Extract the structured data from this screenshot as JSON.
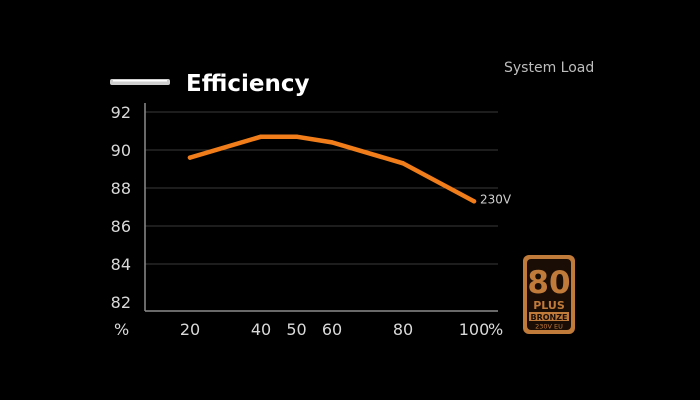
{
  "chart_data": {
    "type": "line",
    "title": "Efficiency",
    "legend_label": "System Load",
    "y_unit": "%",
    "x_unit": "%",
    "x_categories": [
      "20",
      "40",
      "50",
      "60",
      "80",
      "100"
    ],
    "y_ticks": [
      "92",
      "90",
      "88",
      "86",
      "84",
      "82"
    ],
    "ylim": [
      82,
      92
    ],
    "grid": true,
    "series": [
      {
        "name": "230V",
        "color": "#f07d1a",
        "points": [
          {
            "x": 20,
            "y": 89.6
          },
          {
            "x": 40,
            "y": 90.7
          },
          {
            "x": 50,
            "y": 90.7
          },
          {
            "x": 60,
            "y": 90.4
          },
          {
            "x": 80,
            "y": 89.3
          },
          {
            "x": 100,
            "y": 87.3
          }
        ]
      }
    ]
  },
  "badge": {
    "number": "80",
    "plus": "PLUS",
    "tier": "BRONZE",
    "rating": "230V EU",
    "color": "#c07a3a"
  }
}
